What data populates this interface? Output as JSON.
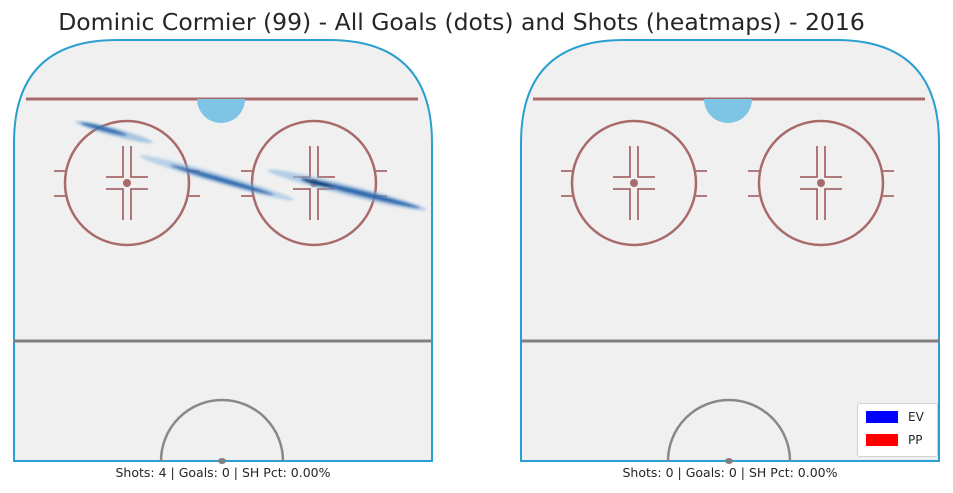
{
  "chart_data": {
    "type": "heatmap",
    "title": "Dominic Cormier (99) - All Goals (dots) and Shots (heatmaps) - 2016",
    "panels": [
      {
        "label": "Shots: 4 | Goals: 0 | SH Pct: 0.00%",
        "shots": 4,
        "goals": 0,
        "sh_pct": "0.00%",
        "heatmap_color": "#1f5fa8",
        "goal_dots": []
      },
      {
        "label": "Shots: 0 | Goals: 0 | SH Pct: 0.00%",
        "shots": 0,
        "goals": 0,
        "sh_pct": "0.00%",
        "goal_dots": []
      }
    ],
    "legend": {
      "placement": "bottom-right",
      "entries": [
        {
          "label": "EV",
          "color": "#0000ff"
        },
        {
          "label": "PP",
          "color": "#ff0000"
        }
      ]
    },
    "colors": {
      "boards": "#2b9fd0",
      "ice": "#f0f0f0",
      "goal_line": "#a86a6a",
      "faceoff": "#a86a6a",
      "blue_line": "#808080",
      "crease": "#7ec4e4",
      "center_circle": "#888888"
    }
  }
}
